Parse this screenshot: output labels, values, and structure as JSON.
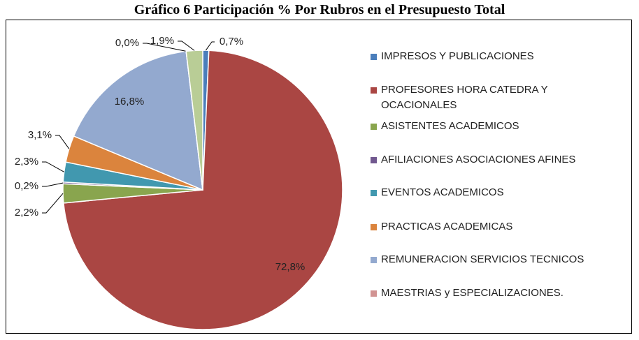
{
  "chart_data": {
    "type": "pie",
    "title": "Gráfico 6 Participación % Por Rubros en el Presupuesto Total",
    "categories": [
      "IMPRESOS Y PUBLICACIONES",
      "PROFESORES HORA CATEDRA Y OCACIONALES",
      "ASISTENTES ACADEMICOS",
      "AFILIACIONES ASOCIACIONES AFINES",
      "EVENTOS ACADEMICOS",
      "PRACTICAS ACADEMICAS",
      "REMUNERACION SERVICIOS TECNICOS",
      "MAESTRIAS  y ESPECIALIZACIONES.",
      null
    ],
    "values": [
      0.7,
      72.8,
      2.2,
      0.2,
      2.3,
      3.1,
      16.8,
      0.0,
      1.9
    ],
    "value_labels": [
      "0,7%",
      "72,8%",
      "2,2%",
      "0,2%",
      "2,3%",
      "3,1%",
      "16,8%",
      "0,0%",
      "1,9%"
    ],
    "colors": [
      "#4a7ebb",
      "#aa4643",
      "#89a54e",
      "#71588f",
      "#4198af",
      "#db843d",
      "#93a9cf",
      "#d19392",
      "#b9cd96"
    ],
    "legend": "right"
  }
}
